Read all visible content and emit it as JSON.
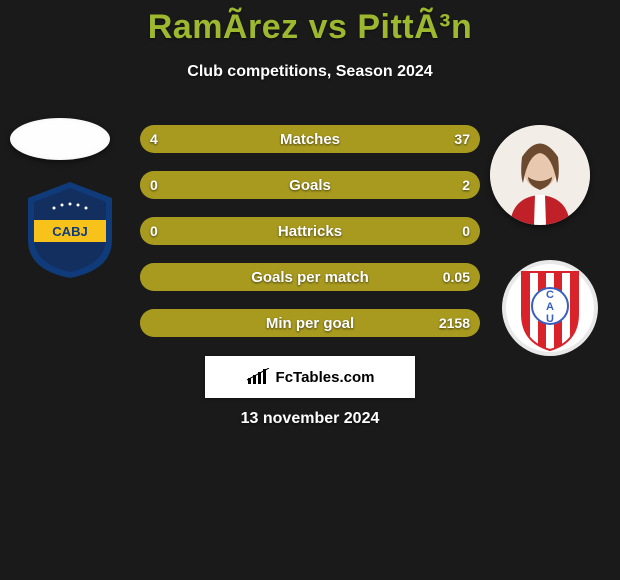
{
  "title": "RamÃ­rez vs PittÃ³n",
  "subtitle": "Club competitions, Season 2024",
  "date": "13 november 2024",
  "brand": "FcTables.com",
  "colors": {
    "accent": "#9db82f",
    "bar_bg": "#6b6316",
    "bar_fill": "#a89a1f",
    "text": "#ffffff",
    "background": "#1a1a1a",
    "brand_box_bg": "#ffffff",
    "brand_text": "#000000"
  },
  "bars": [
    {
      "label": "Matches",
      "left": "4",
      "right": "37",
      "left_pct": 10,
      "right_pct": 90
    },
    {
      "label": "Goals",
      "left": "0",
      "right": "2",
      "left_pct": 0,
      "right_pct": 100
    },
    {
      "label": "Hattricks",
      "left": "0",
      "right": "0",
      "left_pct": 50,
      "right_pct": 50
    },
    {
      "label": "Goals per match",
      "left": "",
      "right": "0.05",
      "left_pct": 0,
      "right_pct": 100
    },
    {
      "label": "Min per goal",
      "left": "",
      "right": "2158",
      "left_pct": 0,
      "right_pct": 100
    }
  ],
  "left_player": {
    "name": "RamÃ­rez"
  },
  "right_player": {
    "name": "PittÃ³n"
  },
  "left_club": {
    "name": "Boca Juniors",
    "abbrev": "CABJ",
    "badge_colors": {
      "outer": "#0f3b7a",
      "band": "#f7c21a",
      "inner_top": "#1a4fa0",
      "inner_bottom": "#122f60"
    }
  },
  "right_club": {
    "name": "Unión",
    "abbrev_top": "C",
    "abbrev_mid": "A",
    "abbrev_bot": "U",
    "badge_colors": {
      "stripe": "#d8232a",
      "bg": "#ffffff",
      "ring": "#e8e8e8"
    }
  }
}
